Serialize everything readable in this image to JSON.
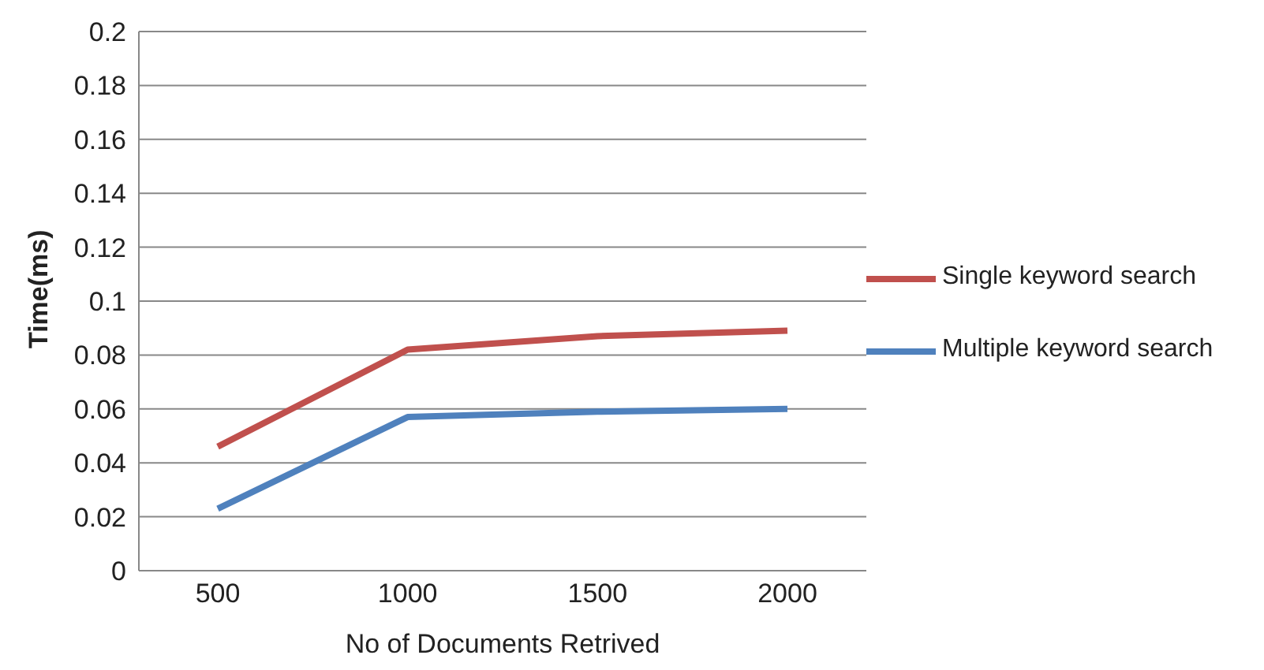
{
  "chart_data": {
    "type": "line",
    "xlabel": "No of Documents Retrived",
    "ylabel": "Time(ms)",
    "categories": [
      "500",
      "1000",
      "1500",
      "2000"
    ],
    "series": [
      {
        "name": "Single keyword search",
        "color": "#c0504d",
        "values": [
          0.046,
          0.082,
          0.087,
          0.089
        ]
      },
      {
        "name": "Multiple keyword search",
        "color": "#4f81bd",
        "values": [
          0.023,
          0.057,
          0.059,
          0.06
        ]
      }
    ],
    "ylim": [
      0,
      0.2
    ],
    "yticks": [
      0,
      0.02,
      0.04,
      0.06,
      0.08,
      0.1,
      0.12,
      0.14,
      0.16,
      0.18,
      0.2
    ],
    "grid": "y",
    "legend": "right",
    "marker": "none",
    "line_style": "solid"
  }
}
